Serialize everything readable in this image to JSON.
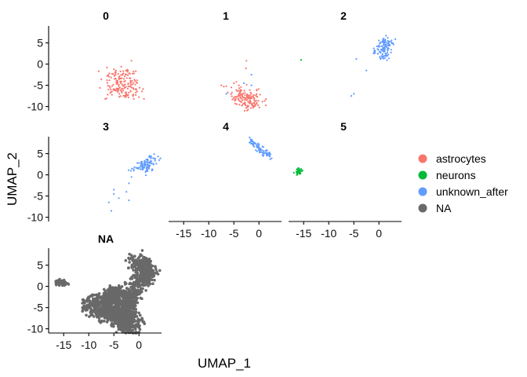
{
  "chart_data": {
    "type": "scatter",
    "layout": "faceted small multiples (3 columns)",
    "xlabel": "UMAP_1",
    "ylabel": "UMAP_2",
    "xlim": [
      -18,
      4.5
    ],
    "ylim": [
      -11,
      9
    ],
    "x_ticks": [
      -15,
      -10,
      -5,
      0
    ],
    "y_ticks": [
      5,
      0,
      -5,
      -10
    ],
    "grid": false,
    "legend": {
      "position": "right",
      "entries": [
        {
          "label": "astrocytes",
          "color": "#F8766D"
        },
        {
          "label": "neurons",
          "color": "#00BA38"
        },
        {
          "label": "unknown_after",
          "color": "#619CFF"
        },
        {
          "label": "NA",
          "color": "#696969"
        }
      ]
    },
    "panels": [
      {
        "title": "0",
        "groups": [
          {
            "label": "astrocytes",
            "shape": "blob",
            "points": [
              [
                -4,
                -3.5
              ],
              [
                -2,
                -4.5
              ],
              [
                -4.5,
                -6
              ],
              [
                -1.5,
                -6.5
              ],
              [
                -3,
                -6.5
              ],
              [
                -4.5,
                -2
              ],
              [
                -3.5,
                -2.5
              ],
              [
                -5.5,
                -4.5
              ],
              [
                -2.5,
                -3
              ],
              [
                -3.5,
                -5
              ]
            ],
            "spread": 1.1,
            "n": 130
          },
          {
            "label": "astrocytes",
            "shape": "scatter",
            "points": [
              [
                -5,
                -5.5
              ],
              [
                -5.5,
                -3
              ],
              [
                -1,
                -6.5
              ],
              [
                -2.5,
                -7.5
              ],
              [
                -0.5,
                -5.5
              ],
              [
                -1.2,
                -5
              ]
            ],
            "spread": 1.4,
            "n": 40
          },
          {
            "label": "astrocytes",
            "shape": "points",
            "points": [
              [
                -1.5,
                0.8
              ],
              [
                -2.2,
                -1.5
              ],
              [
                -1,
                -2.2
              ],
              [
                1,
                -8.2
              ],
              [
                0,
                -7.8
              ]
            ]
          }
        ]
      },
      {
        "title": "1",
        "groups": [
          {
            "label": "astrocytes",
            "shape": "blob",
            "points": [
              [
                -3,
                -9
              ],
              [
                -1,
                -8.5
              ],
              [
                -2.5,
                -7.5
              ],
              [
                -4,
                -8
              ],
              [
                -0.5,
                -9.5
              ],
              [
                -1.5,
                -7
              ],
              [
                -2,
                -9.5
              ],
              [
                -3.5,
                -7
              ]
            ],
            "spread": 0.9,
            "n": 140
          },
          {
            "label": "astrocytes",
            "shape": "points",
            "points": [
              [
                -7.5,
                -5
              ],
              [
                -7,
                -5.3
              ],
              [
                -6.5,
                -5.2
              ],
              [
                -5,
                -4.5
              ],
              [
                -4.5,
                -4.2
              ],
              [
                -4,
                -5
              ],
              [
                -5.5,
                -5.5
              ],
              [
                -2.5,
                0.8
              ],
              [
                -2.6,
                -1
              ],
              [
                -6.2,
                -6.7
              ]
            ]
          },
          {
            "label": "unknown_after",
            "shape": "points",
            "points": [
              [
                -1.5,
                -2.5
              ],
              [
                -6.5,
                -7
              ],
              [
                -1.5,
                -5
              ],
              [
                -3,
                -4.5
              ]
            ]
          }
        ]
      },
      {
        "title": "2",
        "groups": [
          {
            "label": "neurons",
            "shape": "points",
            "points": [
              [
                -15.5,
                1
              ]
            ]
          },
          {
            "label": "unknown_after",
            "shape": "blob",
            "points": [
              [
                1,
                5
              ],
              [
                1.5,
                3
              ],
              [
                0.5,
                4
              ],
              [
                2,
                4.5
              ],
              [
                0,
                2.5
              ],
              [
                1,
                2
              ],
              [
                1.8,
                5.5
              ],
              [
                0.8,
                3.5
              ]
            ],
            "spread": 0.6,
            "n": 120
          },
          {
            "label": "unknown_after",
            "shape": "points",
            "points": [
              [
                -4.5,
                1.2
              ],
              [
                -2.5,
                -1.5
              ],
              [
                -5,
                -7
              ],
              [
                -5.5,
                -7.5
              ]
            ]
          }
        ]
      },
      {
        "title": "3",
        "groups": [
          {
            "label": "unknown_after",
            "shape": "blob",
            "points": [
              [
                1,
                2.5
              ],
              [
                2,
                3
              ],
              [
                0,
                2
              ],
              [
                1.5,
                1.5
              ],
              [
                2.5,
                4
              ],
              [
                -0.5,
                1.5
              ],
              [
                1.5,
                2.5
              ]
            ],
            "spread": 0.7,
            "n": 110
          },
          {
            "label": "unknown_after",
            "shape": "points",
            "points": [
              [
                -1,
                1
              ],
              [
                -1.5,
                -0.5
              ],
              [
                -2,
                -2
              ],
              [
                -4,
                -5.5
              ],
              [
                -5,
                -4.5
              ],
              [
                -5,
                -3.5
              ],
              [
                -6,
                -6.5
              ],
              [
                -5.5,
                -8.5
              ],
              [
                -2,
                -6
              ],
              [
                -2.5,
                -4
              ]
            ]
          }
        ]
      },
      {
        "title": "4",
        "groups": [
          {
            "label": "unknown_after",
            "shape": "line",
            "from": [
              -2,
              8.2
            ],
            "to": [
              2,
              4.5
            ],
            "spread": 0.35,
            "n": 90
          }
        ]
      },
      {
        "title": "5",
        "groups": [
          {
            "label": "neurons",
            "shape": "blob",
            "points": [
              [
                -16,
                0.8
              ],
              [
                -15.8,
                1.2
              ],
              [
                -16.2,
                0.5
              ]
            ],
            "spread": 0.3,
            "n": 40
          }
        ]
      },
      {
        "title": "NA",
        "groups": [
          {
            "label": "NA",
            "shape": "blob",
            "points": [
              [
                -6,
                -4
              ],
              [
                -4.5,
                -3.2
              ],
              [
                -7.5,
                -5.5
              ],
              [
                -5,
                -6
              ],
              [
                -3,
                -5
              ],
              [
                -6.5,
                -2.7
              ],
              [
                -8.5,
                -3.5
              ],
              [
                -3.5,
                -4.5
              ],
              [
                -2.2,
                -5.5
              ],
              [
                -5.5,
                -7
              ],
              [
                -8,
                -6.2
              ],
              [
                -2.5,
                -7.5
              ],
              [
                -1,
                -8.5
              ],
              [
                -1.5,
                -10
              ],
              [
                -3,
                -9.5
              ],
              [
                -2,
                -6.5
              ],
              [
                -4,
                -8
              ],
              [
                -9.5,
                -4.5
              ],
              [
                -1,
                -1.5
              ],
              [
                -0.5,
                0.5
              ],
              [
                0.5,
                1.5
              ],
              [
                1,
                3
              ],
              [
                1.5,
                2
              ],
              [
                0.5,
                4
              ],
              [
                1,
                5.5
              ],
              [
                -0.5,
                6
              ],
              [
                1.8,
                3.8
              ],
              [
                -2,
                -2.8
              ],
              [
                -3.8,
                -1.5
              ],
              [
                -4.8,
                -1
              ]
            ],
            "spread": 0.95,
            "n": 1500
          },
          {
            "label": "NA",
            "shape": "blob",
            "points": [
              [
                -16,
                1
              ],
              [
                -15.5,
                1.3
              ],
              [
                -15,
                0.6
              ]
            ],
            "spread": 0.35,
            "n": 60
          }
        ]
      }
    ]
  }
}
